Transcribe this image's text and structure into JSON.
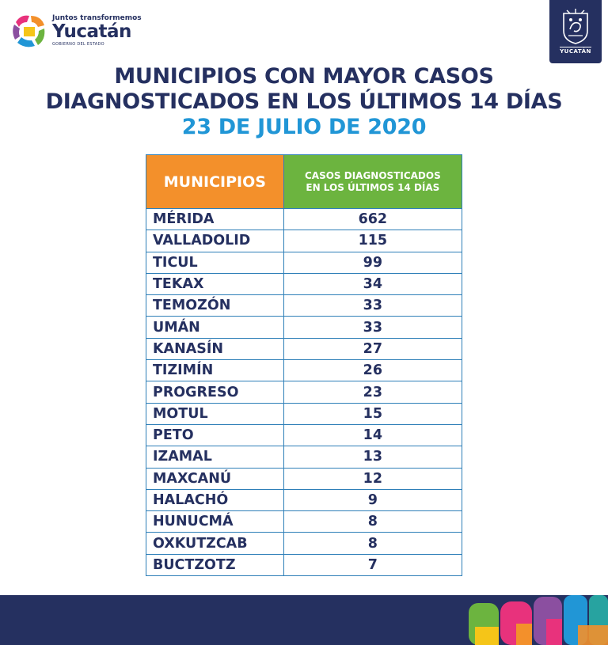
{
  "branding": {
    "tagline": "Juntos transformemos",
    "name": "Yucatán",
    "sub": "GOBIERNO DEL ESTADO",
    "seal_label": "YUCATÁN"
  },
  "title": {
    "line1": "MUNICIPIOS CON MAYOR CASOS",
    "line2": "DIAGNOSTICADOS EN LOS ÚLTIMOS 14 DÍAS",
    "date": "23 DE JULIO DE 2020"
  },
  "table": {
    "header_municipio": "MUNICIPIOS",
    "header_casos_line1": "CASOS DIAGNOSTICADOS",
    "header_casos_line2": "EN LOS ÚLTIMOS 14 DÍAS",
    "rows": [
      {
        "municipio": "MÉRIDA",
        "casos": "662"
      },
      {
        "municipio": "VALLADOLID",
        "casos": "115"
      },
      {
        "municipio": "TICUL",
        "casos": "99"
      },
      {
        "municipio": "TEKAX",
        "casos": "34"
      },
      {
        "municipio": "TEMOZÓN",
        "casos": "33"
      },
      {
        "municipio": "UMÁN",
        "casos": "33"
      },
      {
        "municipio": "KANASÍN",
        "casos": "27"
      },
      {
        "municipio": "TIZIMÍN",
        "casos": "26"
      },
      {
        "municipio": "PROGRESO",
        "casos": "23"
      },
      {
        "municipio": "MOTUL",
        "casos": "15"
      },
      {
        "municipio": "PETO",
        "casos": "14"
      },
      {
        "municipio": "IZAMAL",
        "casos": "13"
      },
      {
        "municipio": "MAXCANÚ",
        "casos": "12"
      },
      {
        "municipio": "HALACHÓ",
        "casos": "9"
      },
      {
        "municipio": "HUNUCMÁ",
        "casos": "8"
      },
      {
        "municipio": "OXKUTZCAB",
        "casos": "8"
      },
      {
        "municipio": "BUCTZOTZ",
        "casos": "7"
      }
    ]
  },
  "colors": {
    "navy": "#253060",
    "date_blue": "#2196d6",
    "header_orange": "#f3902b",
    "header_green": "#6cb43f",
    "border_blue": "#2e7fb8"
  }
}
